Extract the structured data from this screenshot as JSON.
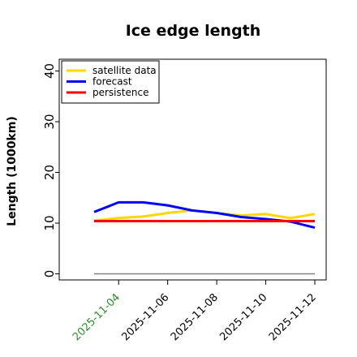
{
  "chart_data": {
    "type": "line",
    "title": "Ice edge length",
    "xlabel": "",
    "ylabel": "Length (1000km)",
    "ylim": [
      0,
      40
    ],
    "yticks": [
      0,
      10,
      20,
      30,
      40
    ],
    "xlim": [
      "2025-11-02",
      "2025-11-12"
    ],
    "x": [
      "2025-11-03",
      "2025-11-04",
      "2025-11-05",
      "2025-11-06",
      "2025-11-07",
      "2025-11-08",
      "2025-11-09",
      "2025-11-10",
      "2025-11-11",
      "2025-11-12"
    ],
    "xticks": [
      {
        "value": "2025-11-04",
        "label": "2025-11-04",
        "color": "#2e8b2e"
      },
      {
        "value": "2025-11-06",
        "label": "2025-11-06",
        "color": "#000000"
      },
      {
        "value": "2025-11-08",
        "label": "2025-11-08",
        "color": "#000000"
      },
      {
        "value": "2025-11-10",
        "label": "2025-11-10",
        "color": "#000000"
      },
      {
        "value": "2025-11-12",
        "label": "2025-11-12",
        "color": "#000000"
      }
    ],
    "series": [
      {
        "name": "satellite data",
        "color": "#ffd700",
        "values": [
          10.5,
          11.0,
          11.3,
          12.0,
          12.5,
          12.0,
          11.5,
          11.8,
          11.0,
          11.8
        ]
      },
      {
        "name": "forecast",
        "color": "#0000ff",
        "values": [
          12.2,
          14.1,
          14.1,
          13.5,
          12.5,
          12.0,
          11.2,
          10.8,
          10.3,
          9.1
        ]
      },
      {
        "name": "persistence",
        "color": "#ff0000",
        "values": [
          10.4,
          10.4,
          10.4,
          10.4,
          10.4,
          10.4,
          10.4,
          10.4,
          10.4,
          10.4
        ]
      }
    ],
    "reference_line": {
      "value": 0,
      "color": "#808080"
    },
    "legend": "upper-left",
    "grid": false
  }
}
